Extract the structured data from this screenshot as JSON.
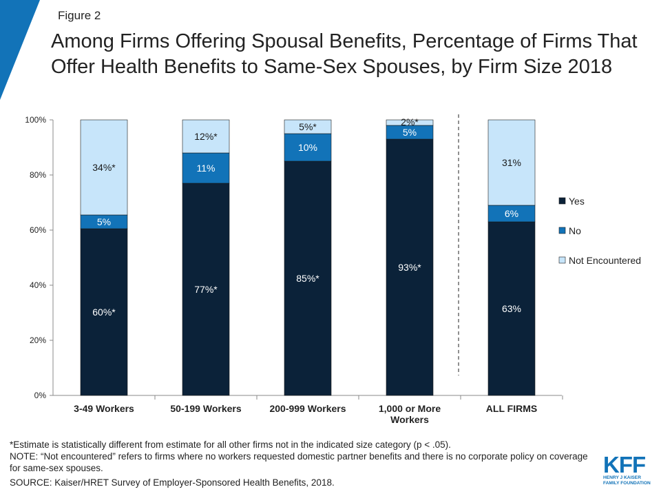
{
  "figure_label": "Figure 2",
  "title": "Among Firms Offering Spousal Benefits, Percentage of Firms That Offer Health Benefits to Same-Sex Spouses, by Firm Size 2018",
  "colors": {
    "yes": "#0b2239",
    "no": "#1273b8",
    "not_encountered": "#c7e5fa",
    "corner": "#1273b8"
  },
  "chart_data": {
    "type": "bar",
    "stacked": true,
    "ylim": [
      0,
      100
    ],
    "yticks": [
      "0%",
      "20%",
      "40%",
      "60%",
      "80%",
      "100%"
    ],
    "categories": [
      "3-49 Workers",
      "50-199 Workers",
      "200-999 Workers",
      "1,000 or More Workers",
      "ALL FIRMS"
    ],
    "series": [
      {
        "name": "Yes",
        "key": "yes",
        "values": [
          60.5,
          77,
          85,
          93,
          63
        ],
        "labels": [
          "60%*",
          "77%*",
          "85%*",
          "93%*",
          "63%"
        ],
        "label_color": "#ffffff"
      },
      {
        "name": "No",
        "key": "no",
        "values": [
          5,
          11,
          10,
          5,
          6
        ],
        "labels": [
          "5%",
          "11%",
          "10%",
          "5%",
          "6%"
        ],
        "label_color": "#ffffff"
      },
      {
        "name": "Not Encountered",
        "key": "not_encountered",
        "values": [
          34.5,
          12,
          5,
          2,
          31
        ],
        "labels": [
          "34%*",
          "12%*",
          "5%*",
          "2%*",
          "31%"
        ],
        "label_color": "#1a1a1a"
      }
    ],
    "legend_position": "right",
    "divider_before_category": 4
  },
  "footnotes": {
    "asterisk": "*Estimate is statistically different from estimate for all other firms not in the indicated size category (p < .05).",
    "note": "NOTE: “Not encountered” refers to firms where no workers requested domestic partner benefits and there is no corporate policy on coverage for same-sex spouses.",
    "source": "SOURCE: Kaiser/HRET Survey of Employer-Sponsored Health Benefits, 2018."
  },
  "logo": {
    "mark": "KFF",
    "line1": "HENRY J KAISER",
    "line2": "FAMILY FOUNDATION"
  }
}
